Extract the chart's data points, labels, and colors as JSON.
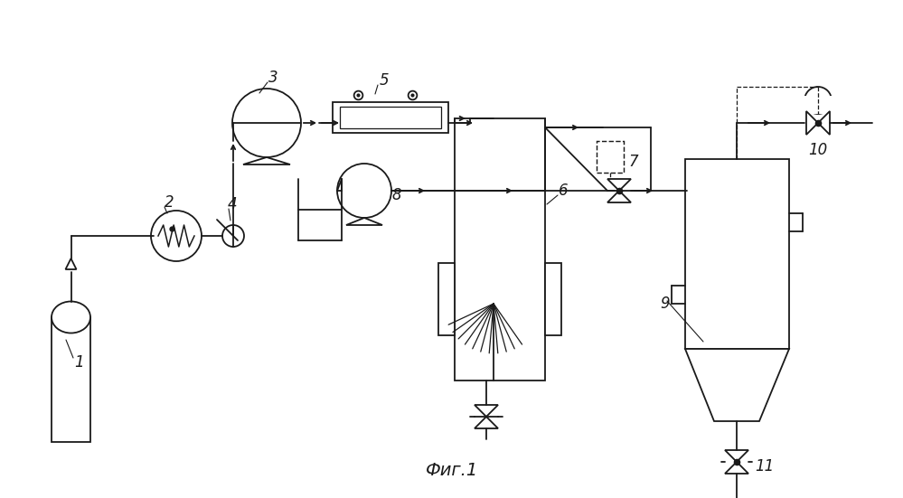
{
  "title": "Фиг.1",
  "bg": "#ffffff",
  "lc": "#1a1a1a",
  "lw": 1.3,
  "fw": 9.99,
  "fh": 5.51
}
